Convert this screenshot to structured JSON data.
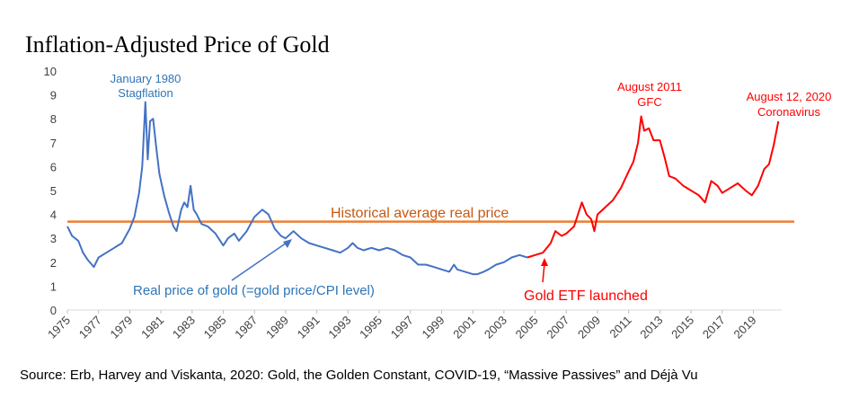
{
  "chart_data": {
    "type": "line",
    "title": "Inflation-Adjusted Price of Gold",
    "xlabel": "",
    "ylabel": "",
    "xlim": [
      1975,
      2020.7
    ],
    "ylim": [
      0,
      10
    ],
    "yticks": [
      "0",
      "1",
      "2",
      "3",
      "4",
      "5",
      "6",
      "7",
      "8",
      "9",
      "10"
    ],
    "xticks": [
      "1975",
      "1977",
      "1979",
      "1981",
      "1983",
      "1985",
      "1987",
      "1989",
      "1991",
      "1993",
      "1995",
      "1997",
      "1999",
      "2001",
      "2003",
      "2005",
      "2007",
      "2009",
      "2011",
      "2013",
      "2015",
      "2017",
      "2019"
    ],
    "grid": false,
    "reference_line": {
      "label": "Historical average real price",
      "value": 3.7,
      "color": "#ED7D31"
    },
    "series": [
      {
        "color": "#4472C4",
        "x": [
          1975.0,
          1975.3,
          1975.7,
          1976.0,
          1976.3,
          1976.7,
          1977.0,
          1977.5,
          1978.0,
          1978.5,
          1979.0,
          1979.3,
          1979.6,
          1979.8,
          1980.0,
          1980.15,
          1980.3,
          1980.5,
          1980.7,
          1980.9,
          1981.2,
          1981.5,
          1981.8,
          1982.0,
          1982.3,
          1982.5,
          1982.7,
          1982.9,
          1983.1,
          1983.3,
          1983.6,
          1984.0,
          1984.5,
          1985.0,
          1985.3,
          1985.7,
          1986.0,
          1986.5,
          1987.0,
          1987.5,
          1987.9,
          1988.3,
          1988.7,
          1989.0,
          1989.5,
          1990.0,
          1990.5,
          1991.0,
          1991.5,
          1992.0,
          1992.5,
          1993.0,
          1993.3,
          1993.6,
          1994.0,
          1994.5,
          1995.0,
          1995.5,
          1996.0,
          1996.5,
          1997.0,
          1997.5,
          1998.0,
          1998.5,
          1999.0,
          1999.5,
          1999.8,
          2000.0,
          2000.5,
          2001.0,
          2001.3,
          2001.7,
          2002.0,
          2002.5,
          2003.0,
          2003.5,
          2004.0,
          2004.5
        ],
        "values": [
          3.5,
          3.1,
          2.9,
          2.4,
          2.1,
          1.8,
          2.2,
          2.4,
          2.6,
          2.8,
          3.4,
          3.9,
          4.9,
          6.0,
          8.7,
          6.3,
          7.9,
          8.0,
          6.8,
          5.7,
          4.8,
          4.1,
          3.5,
          3.3,
          4.2,
          4.5,
          4.3,
          5.2,
          4.2,
          4.0,
          3.6,
          3.5,
          3.2,
          2.7,
          3.0,
          3.2,
          2.9,
          3.3,
          3.9,
          4.2,
          4.0,
          3.4,
          3.1,
          3.0,
          3.3,
          3.0,
          2.8,
          2.7,
          2.6,
          2.5,
          2.4,
          2.6,
          2.8,
          2.6,
          2.5,
          2.6,
          2.5,
          2.6,
          2.5,
          2.3,
          2.2,
          1.9,
          1.9,
          1.8,
          1.7,
          1.6,
          1.9,
          1.7,
          1.6,
          1.5,
          1.5,
          1.6,
          1.7,
          1.9,
          2.0,
          2.2,
          2.3,
          2.2
        ]
      },
      {
        "color": "#FF0000",
        "x": [
          2004.5,
          2005.0,
          2005.5,
          2006.0,
          2006.3,
          2006.7,
          2007.0,
          2007.5,
          2008.0,
          2008.3,
          2008.6,
          2008.8,
          2009.0,
          2009.5,
          2010.0,
          2010.5,
          2011.0,
          2011.3,
          2011.6,
          2011.8,
          2012.0,
          2012.3,
          2012.6,
          2013.0,
          2013.3,
          2013.6,
          2014.0,
          2014.5,
          2015.0,
          2015.5,
          2015.9,
          2016.3,
          2016.7,
          2017.0,
          2017.5,
          2018.0,
          2018.5,
          2018.9,
          2019.3,
          2019.7,
          2020.0,
          2020.3,
          2020.6
        ],
        "values": [
          2.2,
          2.3,
          2.4,
          2.8,
          3.3,
          3.1,
          3.2,
          3.5,
          4.5,
          4.0,
          3.8,
          3.3,
          4.0,
          4.3,
          4.6,
          5.1,
          5.8,
          6.2,
          7.0,
          8.1,
          7.5,
          7.6,
          7.1,
          7.1,
          6.4,
          5.6,
          5.5,
          5.2,
          5.0,
          4.8,
          4.5,
          5.4,
          5.2,
          4.9,
          5.1,
          5.3,
          5.0,
          4.8,
          5.2,
          5.9,
          6.1,
          6.9,
          7.9
        ]
      }
    ],
    "annotations": [
      {
        "lines": [
          "January 1980",
          "Stagflation"
        ],
        "color": "#2E75B6"
      },
      {
        "lines": [
          "August 2011",
          "GFC"
        ],
        "color": "#FF0000"
      },
      {
        "lines": [
          "August 12, 2020",
          "Coronavirus"
        ],
        "color": "#FF0000"
      },
      {
        "lines": [
          "Historical average real price"
        ],
        "color": "#C55A11"
      },
      {
        "lines": [
          "Real price of gold (=gold price/CPI level)"
        ],
        "color": "#2E75B6"
      },
      {
        "lines": [
          "Gold ETF launched"
        ],
        "color": "#FF0000"
      }
    ],
    "source": "Source: Erb, Harvey and Viskanta, 2020: Gold, the Golden Constant, COVID-19, “Massive Passives” and Déjà Vu"
  }
}
